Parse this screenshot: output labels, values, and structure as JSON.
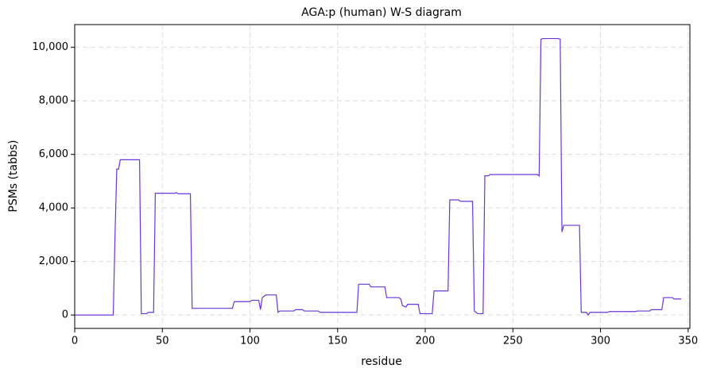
{
  "chart_data": {
    "type": "line",
    "title": "AGA:p (human) W-S diagram",
    "x_label": "residue",
    "y_label": "PSMs (tabbs)",
    "x": [
      0,
      22,
      23,
      24,
      25,
      26,
      37,
      38,
      41,
      42,
      45,
      46,
      57,
      58,
      59,
      66,
      67,
      90,
      91,
      100,
      101,
      105,
      106,
      107,
      108,
      109,
      115,
      116,
      117,
      125,
      126,
      130,
      131,
      139,
      140,
      161,
      162,
      168,
      169,
      177,
      178,
      185,
      186,
      187,
      189,
      190,
      196,
      197,
      204,
      205,
      213,
      214,
      219,
      220,
      227,
      228,
      229,
      230,
      233,
      234,
      236,
      237,
      264,
      265,
      266,
      267,
      276,
      277,
      278,
      279,
      288,
      289,
      292,
      293,
      294,
      304,
      305,
      320,
      321,
      328,
      329,
      335,
      336,
      341,
      342,
      346
    ],
    "series": [
      {
        "name": "PSMs",
        "color": "#6a35d9",
        "values": [
          0,
          0,
          3000,
          5450,
          5450,
          5800,
          5800,
          50,
          50,
          100,
          100,
          4550,
          4550,
          4570,
          4530,
          4530,
          250,
          250,
          500,
          500,
          550,
          550,
          200,
          650,
          700,
          750,
          750,
          100,
          150,
          150,
          200,
          200,
          150,
          150,
          100,
          100,
          1150,
          1150,
          1050,
          1050,
          650,
          650,
          600,
          350,
          300,
          400,
          400,
          50,
          50,
          900,
          900,
          4300,
          4300,
          4250,
          4250,
          150,
          100,
          50,
          50,
          5200,
          5200,
          5250,
          5250,
          5200,
          10300,
          10330,
          10330,
          10300,
          3100,
          3350,
          3350,
          100,
          100,
          0,
          100,
          100,
          130,
          130,
          150,
          150,
          200,
          200,
          650,
          650,
          600,
          600
        ]
      }
    ],
    "xlim": [
      0,
      351
    ],
    "ylim": [
      -500,
      10850
    ],
    "xticks": [
      0,
      50,
      100,
      150,
      200,
      250,
      300,
      350
    ],
    "yticks": [
      0,
      {
        "value": 2000,
        "label": "2,000"
      },
      {
        "value": 4000,
        "label": "4,000"
      },
      {
        "value": 6000,
        "label": "6,000"
      },
      {
        "value": 8000,
        "label": "8,000"
      },
      {
        "value": 10000,
        "label": "10,000"
      }
    ],
    "grid": true
  }
}
